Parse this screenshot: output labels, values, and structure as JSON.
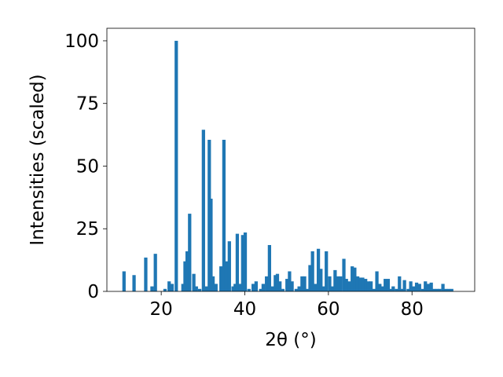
{
  "chart_data": {
    "type": "bar",
    "title": "",
    "xlabel": "2θ (°)",
    "ylabel": "Intensities (scaled)",
    "xlim": [
      7,
      95
    ],
    "ylim": [
      0,
      105
    ],
    "xticks": [
      20,
      40,
      60,
      80
    ],
    "yticks": [
      0,
      25,
      50,
      75,
      100
    ],
    "grid": false,
    "legend": "none",
    "bar_color": "#1f77b4",
    "bar_width": 0.8,
    "x": [
      11.1,
      13.5,
      16.3,
      17.8,
      18.6,
      20.9,
      21.9,
      22.6,
      23.6,
      25.2,
      25.7,
      26.2,
      26.8,
      27.8,
      28.4,
      29.2,
      30.1,
      30.9,
      31.5,
      31.9,
      32.4,
      33.1,
      34.3,
      35.0,
      35.6,
      36.3,
      37.2,
      37.7,
      38.2,
      38.9,
      39.5,
      40.1,
      41.0,
      42.0,
      42.7,
      43.8,
      44.4,
      45.2,
      45.9,
      46.7,
      47.3,
      47.8,
      48.4,
      49.1,
      50.1,
      50.7,
      51.3,
      52.3,
      53.0,
      53.7,
      54.3,
      55.0,
      55.6,
      56.2,
      56.9,
      57.6,
      58.2,
      58.9,
      59.5,
      60.3,
      61.0,
      61.6,
      62.2,
      62.9,
      63.7,
      64.3,
      65.0,
      65.7,
      66.3,
      67.0,
      67.6,
      68.2,
      68.9,
      69.6,
      70.2,
      70.9,
      71.6,
      72.3,
      72.9,
      73.6,
      74.3,
      74.9,
      75.5,
      76.3,
      77.0,
      77.6,
      78.2,
      79.1,
      79.7,
      80.4,
      81.1,
      81.8,
      82.6,
      83.2,
      83.9,
      84.6,
      85.3,
      86.0,
      86.6,
      87.4,
      88.1,
      88.8,
      89.5
    ],
    "values": [
      8,
      6.5,
      13.5,
      2,
      15,
      1,
      4,
      3,
      100,
      3,
      12,
      16,
      31,
      7,
      2,
      1,
      64.5,
      2,
      60.5,
      37,
      6,
      3,
      10,
      60.5,
      12,
      20,
      2,
      3,
      23,
      3,
      22.5,
      23.5,
      1,
      3,
      4,
      1,
      3,
      6,
      18.5,
      2,
      6.5,
      7,
      4,
      1,
      5,
      8,
      4,
      1,
      2,
      6,
      6,
      1,
      10.5,
      16,
      3,
      17,
      9,
      2,
      16,
      6,
      2,
      8.5,
      6,
      6,
      13,
      5,
      4,
      10,
      9.5,
      6,
      5.5,
      5.5,
      5,
      4,
      4,
      1,
      8,
      3,
      2,
      5,
      5,
      1,
      2,
      1,
      6,
      1,
      4.5,
      1,
      4,
      2,
      3.5,
      3,
      1,
      4,
      3,
      3.5,
      1,
      1,
      1,
      3,
      1,
      1,
      1
    ]
  }
}
